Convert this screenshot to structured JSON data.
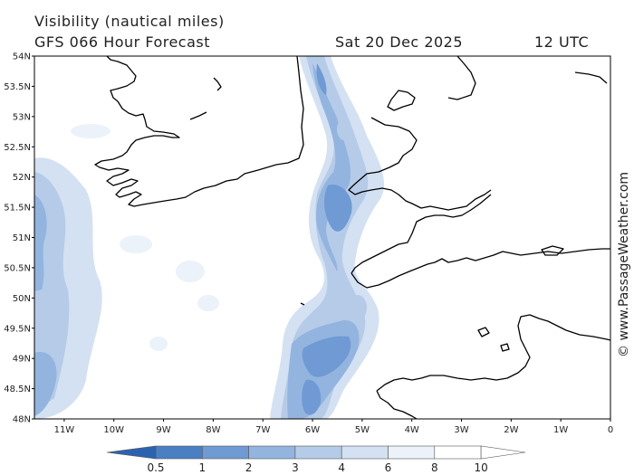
{
  "header": {
    "title": "Visibility (nautical miles)",
    "subtitle": "GFS 066 Hour Forecast",
    "date": "Sat 20 Dec 2025",
    "time": "12 UTC"
  },
  "credit": "© www.PassageWeather.com",
  "axes": {
    "lat_labels": [
      "54N",
      "53.5N",
      "53N",
      "52.5N",
      "52N",
      "51.5N",
      "51N",
      "50.5N",
      "50N",
      "49.5N",
      "49N",
      "48.5N",
      "48N"
    ],
    "lon_labels": [
      "11W",
      "10W",
      "9W",
      "8W",
      "7W",
      "6W",
      "5W",
      "4W",
      "3W",
      "2W",
      "1W",
      "0"
    ],
    "lat_range": [
      48,
      54
    ],
    "lon_range": [
      -11.6,
      0
    ]
  },
  "legend": {
    "values": [
      "0.5",
      "1",
      "2",
      "3",
      "4",
      "6",
      "8",
      "10"
    ],
    "colors": [
      "#2c63b0",
      "#4a7fc4",
      "#6f9ad3",
      "#93b4df",
      "#b5cbe8",
      "#d4e1f2",
      "#ecf2fa",
      "#ffffff"
    ]
  },
  "colors": {
    "land_outline": "#000000",
    "frame": "#000000"
  }
}
